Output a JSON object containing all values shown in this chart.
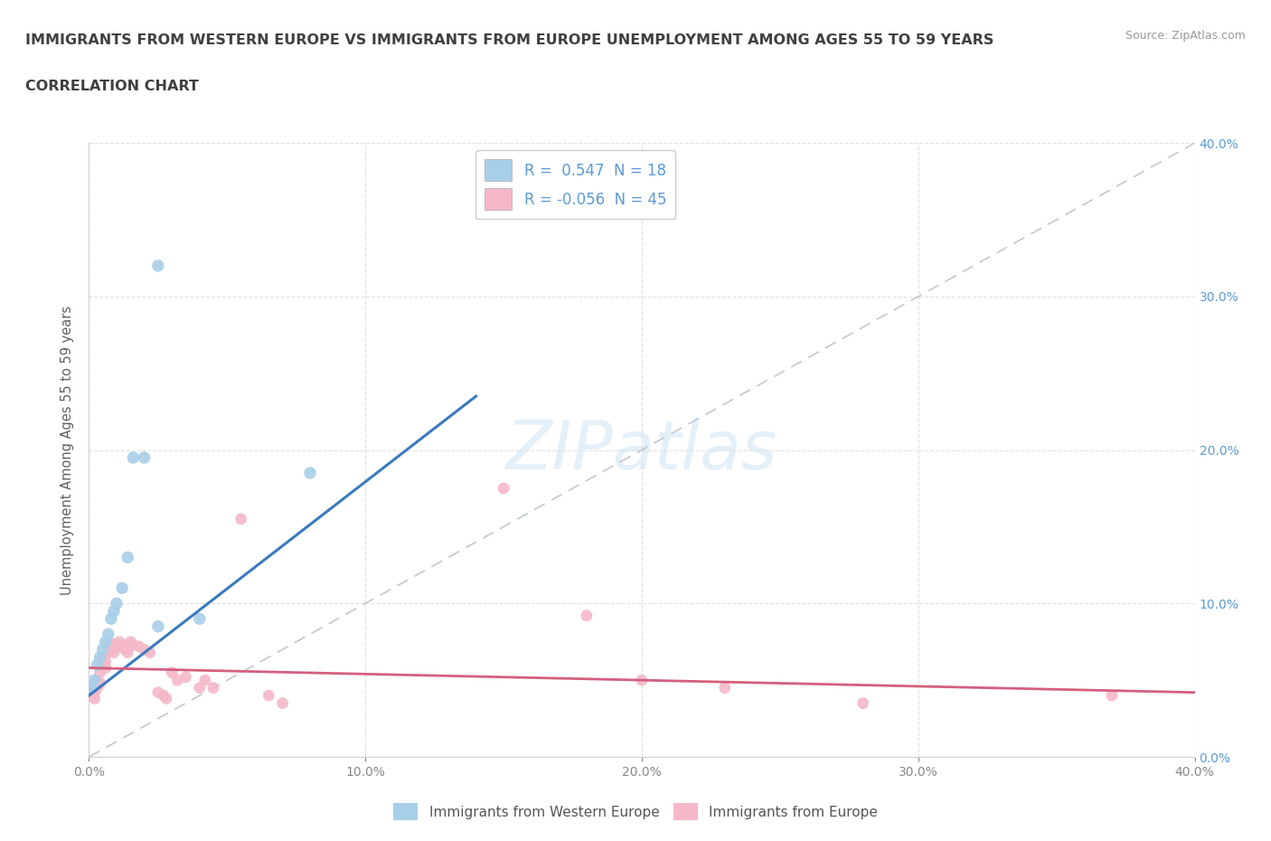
{
  "title_line1": "IMMIGRANTS FROM WESTERN EUROPE VS IMMIGRANTS FROM EUROPE UNEMPLOYMENT AMONG AGES 55 TO 59 YEARS",
  "title_line2": "CORRELATION CHART",
  "source": "Source: ZipAtlas.com",
  "ylabel": "Unemployment Among Ages 55 to 59 years",
  "xlim": [
    0.0,
    0.4
  ],
  "ylim": [
    0.0,
    0.4
  ],
  "xticks": [
    0.0,
    0.1,
    0.2,
    0.3,
    0.4
  ],
  "yticks": [
    0.0,
    0.1,
    0.2,
    0.3,
    0.4
  ],
  "watermark": "ZIPatlas",
  "legend_blue_R": "0.547",
  "legend_blue_N": "18",
  "legend_pink_R": "-0.056",
  "legend_pink_N": "45",
  "legend_blue_label": "Immigrants from Western Europe",
  "legend_pink_label": "Immigrants from Europe",
  "blue_color": "#a8cfe8",
  "pink_color": "#f4b8c8",
  "blue_line_color": "#3a7abf",
  "pink_line_color": "#d45f7e",
  "blue_scatter": [
    [
      0.001,
      0.045
    ],
    [
      0.002,
      0.05
    ],
    [
      0.003,
      0.06
    ],
    [
      0.004,
      0.065
    ],
    [
      0.005,
      0.07
    ],
    [
      0.006,
      0.075
    ],
    [
      0.007,
      0.08
    ],
    [
      0.008,
      0.09
    ],
    [
      0.009,
      0.095
    ],
    [
      0.01,
      0.1
    ],
    [
      0.012,
      0.11
    ],
    [
      0.014,
      0.13
    ],
    [
      0.016,
      0.195
    ],
    [
      0.02,
      0.195
    ],
    [
      0.025,
      0.085
    ],
    [
      0.04,
      0.09
    ],
    [
      0.08,
      0.185
    ],
    [
      0.025,
      0.32
    ]
  ],
  "pink_scatter": [
    [
      0.001,
      0.045
    ],
    [
      0.001,
      0.04
    ],
    [
      0.002,
      0.042
    ],
    [
      0.002,
      0.038
    ],
    [
      0.003,
      0.05
    ],
    [
      0.003,
      0.045
    ],
    [
      0.004,
      0.048
    ],
    [
      0.004,
      0.055
    ],
    [
      0.005,
      0.06
    ],
    [
      0.005,
      0.065
    ],
    [
      0.006,
      0.058
    ],
    [
      0.006,
      0.062
    ],
    [
      0.007,
      0.068
    ],
    [
      0.007,
      0.072
    ],
    [
      0.008,
      0.07
    ],
    [
      0.008,
      0.074
    ],
    [
      0.009,
      0.068
    ],
    [
      0.01,
      0.072
    ],
    [
      0.011,
      0.075
    ],
    [
      0.012,
      0.073
    ],
    [
      0.013,
      0.07
    ],
    [
      0.014,
      0.068
    ],
    [
      0.015,
      0.075
    ],
    [
      0.016,
      0.073
    ],
    [
      0.018,
      0.072
    ],
    [
      0.02,
      0.07
    ],
    [
      0.022,
      0.068
    ],
    [
      0.025,
      0.042
    ],
    [
      0.027,
      0.04
    ],
    [
      0.028,
      0.038
    ],
    [
      0.03,
      0.055
    ],
    [
      0.032,
      0.05
    ],
    [
      0.035,
      0.052
    ],
    [
      0.04,
      0.045
    ],
    [
      0.042,
      0.05
    ],
    [
      0.045,
      0.045
    ],
    [
      0.055,
      0.155
    ],
    [
      0.065,
      0.04
    ],
    [
      0.07,
      0.035
    ],
    [
      0.15,
      0.175
    ],
    [
      0.18,
      0.092
    ],
    [
      0.2,
      0.05
    ],
    [
      0.23,
      0.045
    ],
    [
      0.28,
      0.035
    ],
    [
      0.37,
      0.04
    ]
  ],
  "grid_color": "#cccccc",
  "background_color": "#ffffff",
  "title_color": "#404040",
  "axis_tick_color": "#888888",
  "right_axis_label_color": "#5b9bd5"
}
